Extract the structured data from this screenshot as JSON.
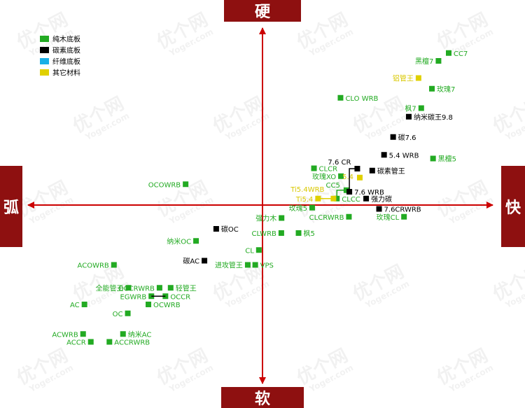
{
  "chart_data": {
    "type": "scatter",
    "title": "",
    "x_axis": {
      "negative_label": "弧",
      "positive_label": "快",
      "range": [
        -100,
        100
      ]
    },
    "y_axis": {
      "negative_label": "软",
      "positive_label": "硬",
      "range": [
        -100,
        100
      ]
    },
    "grid": false,
    "legend_position": "top-left",
    "colors": {
      "wood": "#22aa22",
      "carbon": "#000000",
      "fiber": "#1ab0e6",
      "other": "#e0d000",
      "axis": "#cc0000",
      "axis_box": "#8e1010"
    },
    "watermark": {
      "logo": "优个网",
      "sub": "Yoger.com"
    },
    "series": [
      {
        "name": "纯木底板",
        "key": "wood",
        "points": [
          {
            "label": "CC7",
            "x": 82.1,
            "y": 86.9
          },
          {
            "label": "黑檀7",
            "x": 77.6,
            "y": 82.4
          },
          {
            "label": "玫瑰7",
            "x": 74.7,
            "y": 66.5
          },
          {
            "label": "CLO WRB",
            "x": 34.4,
            "y": 61.3
          },
          {
            "label": "枫7",
            "x": 70.0,
            "y": 55.4
          },
          {
            "label": "黑檀5",
            "x": 75.2,
            "y": 26.6
          },
          {
            "label": "CLCR",
            "x": 22.7,
            "y": 21.0
          },
          {
            "label": "玫瑰XO",
            "x": 34.6,
            "y": 16.5
          },
          {
            "label": "CC5",
            "x": 37.0,
            "y": 8.5
          },
          {
            "label": "CLCC",
            "x": 32.8,
            "y": 3.7
          },
          {
            "label": "玫瑰5",
            "x": 21.9,
            "y": -1.5
          },
          {
            "label": "CLCRWRB",
            "x": 38.1,
            "y": -6.7
          },
          {
            "label": "玫瑰CL",
            "x": 62.4,
            "y": -6.7
          },
          {
            "label": "强力木",
            "x": 8.4,
            "y": -7.4
          },
          {
            "label": "OCOWRB",
            "x": -33.9,
            "y": 11.9
          },
          {
            "label": "CLWRB",
            "x": 8.3,
            "y": -16.0
          },
          {
            "label": "枫5",
            "x": 15.9,
            "y": -16.0
          },
          {
            "label": "纳米OC",
            "x": -29.3,
            "y": -20.5
          },
          {
            "label": "CL",
            "x": -1.6,
            "y": -25.7
          },
          {
            "label": "ACOWRB",
            "x": -65.5,
            "y": -34.2
          },
          {
            "label": "进攻管王",
            "x": -6.5,
            "y": -34.2
          },
          {
            "label": "VPS",
            "x": -3.2,
            "y": -34.2
          },
          {
            "label": "全能管王",
            "x": -59.1,
            "y": -47.3
          },
          {
            "label": "OCCRWRB",
            "x": -45.4,
            "y": -47.3
          },
          {
            "label": "轻管王",
            "x": -40.5,
            "y": -47.3
          },
          {
            "label": "EGWRB",
            "x": -49.0,
            "y": -52.1
          },
          {
            "label": "OCCR",
            "x": -42.8,
            "y": -52.1
          },
          {
            "label": "AC",
            "x": -78.5,
            "y": -56.8
          },
          {
            "label": "OCWRB",
            "x": -50.3,
            "y": -56.8
          },
          {
            "label": "OC",
            "x": -59.4,
            "y": -61.9
          },
          {
            "label": "ACWRB",
            "x": -79.1,
            "y": -73.7
          },
          {
            "label": "纳米AC",
            "x": -61.5,
            "y": -73.7
          },
          {
            "label": "ACCR",
            "x": -75.7,
            "y": -78.2
          },
          {
            "label": "ACCRWRB",
            "x": -67.5,
            "y": -78.2
          }
        ]
      },
      {
        "name": "碳素底板",
        "key": "carbon",
        "points": [
          {
            "label": "纳米碳王9.8",
            "x": 64.5,
            "y": 50.5
          },
          {
            "label": "碳7.6",
            "x": 57.6,
            "y": 38.9
          },
          {
            "label": "5.4 WRB",
            "x": 53.6,
            "y": 28.7
          },
          {
            "label": "7.6 CR",
            "x": 41.8,
            "y": 20.8
          },
          {
            "label": "碳素管王",
            "x": 48.4,
            "y": 19.7
          },
          {
            "label": "7.6 WRB",
            "x": 38.3,
            "y": 7.6
          },
          {
            "label": "强力碳",
            "x": 45.7,
            "y": 3.7
          },
          {
            "label": "7.6CRWRB",
            "x": 51.4,
            "y": -2.2
          },
          {
            "label": "碳OC",
            "x": -20.4,
            "y": -13.6
          },
          {
            "label": "碳AC",
            "x": -25.6,
            "y": -31.8
          }
        ]
      },
      {
        "name": "纤维底板",
        "key": "fiber",
        "points": []
      },
      {
        "name": "其它材料",
        "key": "other",
        "points": [
          {
            "label": "铝管王",
            "x": 68.8,
            "y": 72.6
          },
          {
            "label": "5.4",
            "x": 42.9,
            "y": 15.7
          },
          {
            "label": "Ti5.4WRB",
            "x": 31.3,
            "y": 3.7
          },
          {
            "label": "Ti5.4",
            "x": 24.5,
            "y": 3.7
          }
        ]
      }
    ]
  }
}
